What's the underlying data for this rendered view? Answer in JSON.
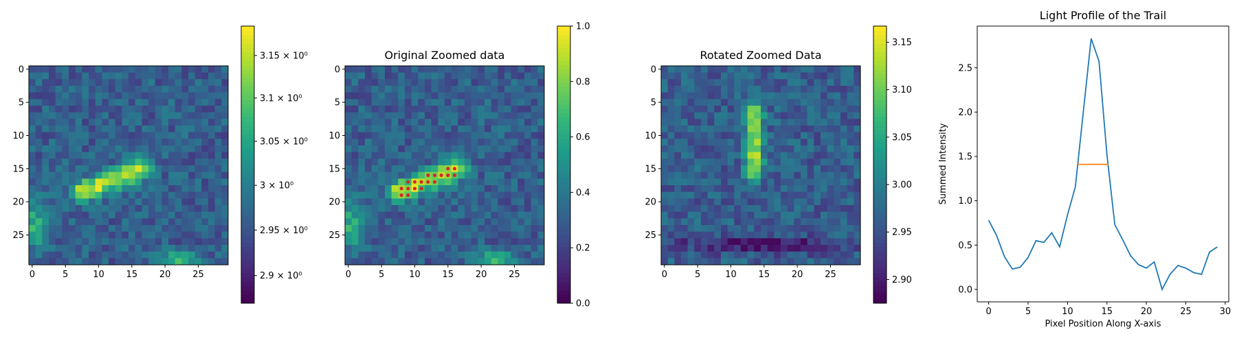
{
  "chart_data": [
    {
      "type": "heatmap",
      "title": "",
      "rows": 30,
      "cols": 30,
      "x_ticks": [
        0,
        5,
        10,
        15,
        20,
        25
      ],
      "y_ticks": [
        0,
        5,
        10,
        15,
        20,
        25
      ],
      "colormap": "viridis",
      "trail": {
        "x0": 7.5,
        "y0": 18.5,
        "x1": 16.5,
        "y1": 15.0,
        "width": 1.1
      },
      "blobs": [
        {
          "x": 22,
          "y": 28.5,
          "sx": 2.0,
          "sy": 0.7,
          "amp": 0.45
        },
        {
          "x": 0.5,
          "y": 23.5,
          "sx": 1.2,
          "sy": 2.5,
          "amp": 0.35
        }
      ],
      "colorbar": {
        "scale": "log",
        "range": [
          2.87,
          3.185
        ],
        "ticks": [
          2.9,
          2.95,
          3.0,
          3.05,
          3.1,
          3.15
        ],
        "tick_labels": [
          "2.9 × 10⁰",
          "2.95 × 10⁰",
          "3 × 10⁰",
          "3.05 × 10⁰",
          "3.1 × 10⁰",
          "3.15 × 10⁰"
        ]
      }
    },
    {
      "type": "heatmap",
      "title": "Original Zoomed data",
      "rows": 30,
      "cols": 30,
      "x_ticks": [
        0,
        5,
        10,
        15,
        20,
        25
      ],
      "y_ticks": [
        0,
        5,
        10,
        15,
        20,
        25
      ],
      "colormap": "viridis",
      "trail": {
        "x0": 7.5,
        "y0": 18.5,
        "x1": 16.5,
        "y1": 15.0,
        "width": 1.1
      },
      "blobs": [
        {
          "x": 22,
          "y": 28.5,
          "sx": 2.0,
          "sy": 0.7,
          "amp": 0.45
        },
        {
          "x": 0.5,
          "y": 23.5,
          "sx": 1.2,
          "sy": 2.5,
          "amp": 0.35
        }
      ],
      "highlight_points": [
        [
          8,
          19
        ],
        [
          9,
          19
        ],
        [
          8,
          18
        ],
        [
          9,
          18
        ],
        [
          10,
          18
        ],
        [
          11,
          18
        ],
        [
          9,
          17
        ],
        [
          10,
          17
        ],
        [
          11,
          17
        ],
        [
          12,
          17
        ],
        [
          13,
          17
        ],
        [
          12,
          16
        ],
        [
          13,
          16
        ],
        [
          14,
          16
        ],
        [
          15,
          16
        ],
        [
          16,
          16
        ],
        [
          15,
          15
        ],
        [
          16,
          15
        ]
      ],
      "highlight_color": "#d62728",
      "colorbar": {
        "scale": "linear",
        "range": [
          0,
          1
        ],
        "ticks": [
          0,
          0.2,
          0.4,
          0.6,
          0.8,
          1
        ],
        "tick_labels": [
          "0.0",
          "0.2",
          "0.4",
          "0.6",
          "0.8",
          "1.0"
        ]
      }
    },
    {
      "type": "heatmap",
      "title": "Rotated Zoomed Data",
      "rows": 30,
      "cols": 30,
      "x_ticks": [
        0,
        5,
        10,
        15,
        20,
        25
      ],
      "y_ticks": [
        0,
        5,
        10,
        15,
        20,
        25
      ],
      "colormap": "viridis",
      "trail": {
        "x0": 13.5,
        "y0": 6.5,
        "x1": 13.5,
        "y1": 15.5,
        "width": 0.9
      },
      "blobs": [
        {
          "x": 15,
          "y": 26.5,
          "sx": 9,
          "sy": 0.8,
          "amp": -0.3
        }
      ],
      "colorbar": {
        "scale": "linear",
        "range": [
          2.875,
          3.167
        ],
        "ticks": [
          2.9,
          2.95,
          3.0,
          3.05,
          3.1,
          3.15
        ],
        "tick_labels": [
          "2.90",
          "2.95",
          "3.00",
          "3.05",
          "3.10",
          "3.15"
        ]
      }
    },
    {
      "type": "line",
      "title": "Light Profile of the Trail",
      "xlabel": "Pixel Position Along X-axis",
      "ylabel": "Summed Intensity",
      "xlim": [
        -1.45,
        30.45
      ],
      "ylim": [
        -0.14,
        2.97
      ],
      "x_ticks": [
        0,
        5,
        10,
        15,
        20,
        25,
        30
      ],
      "y_ticks": [
        0.0,
        0.5,
        1.0,
        1.5,
        2.0,
        2.5
      ],
      "y_tick_labels": [
        "0.0",
        "0.5",
        "1.0",
        "1.5",
        "2.0",
        "2.5"
      ],
      "series": [
        {
          "color": "#1f77b4",
          "x": [
            0,
            1,
            2,
            3,
            4,
            5,
            6,
            7,
            8,
            9,
            10,
            11,
            12,
            13,
            14,
            15,
            16,
            17,
            18,
            19,
            20,
            21,
            22,
            23,
            24,
            25,
            26,
            27,
            28,
            29
          ],
          "values": [
            0.78,
            0.61,
            0.37,
            0.23,
            0.25,
            0.36,
            0.55,
            0.53,
            0.64,
            0.48,
            0.84,
            1.16,
            2.0,
            2.83,
            2.57,
            1.52,
            0.73,
            0.56,
            0.38,
            0.28,
            0.24,
            0.31,
            0.0,
            0.17,
            0.27,
            0.24,
            0.19,
            0.17,
            0.42,
            0.48
          ]
        },
        {
          "color": "#ff7f0e",
          "x": [
            11.3,
            15.2
          ],
          "values": [
            1.41,
            1.41
          ]
        }
      ]
    }
  ]
}
